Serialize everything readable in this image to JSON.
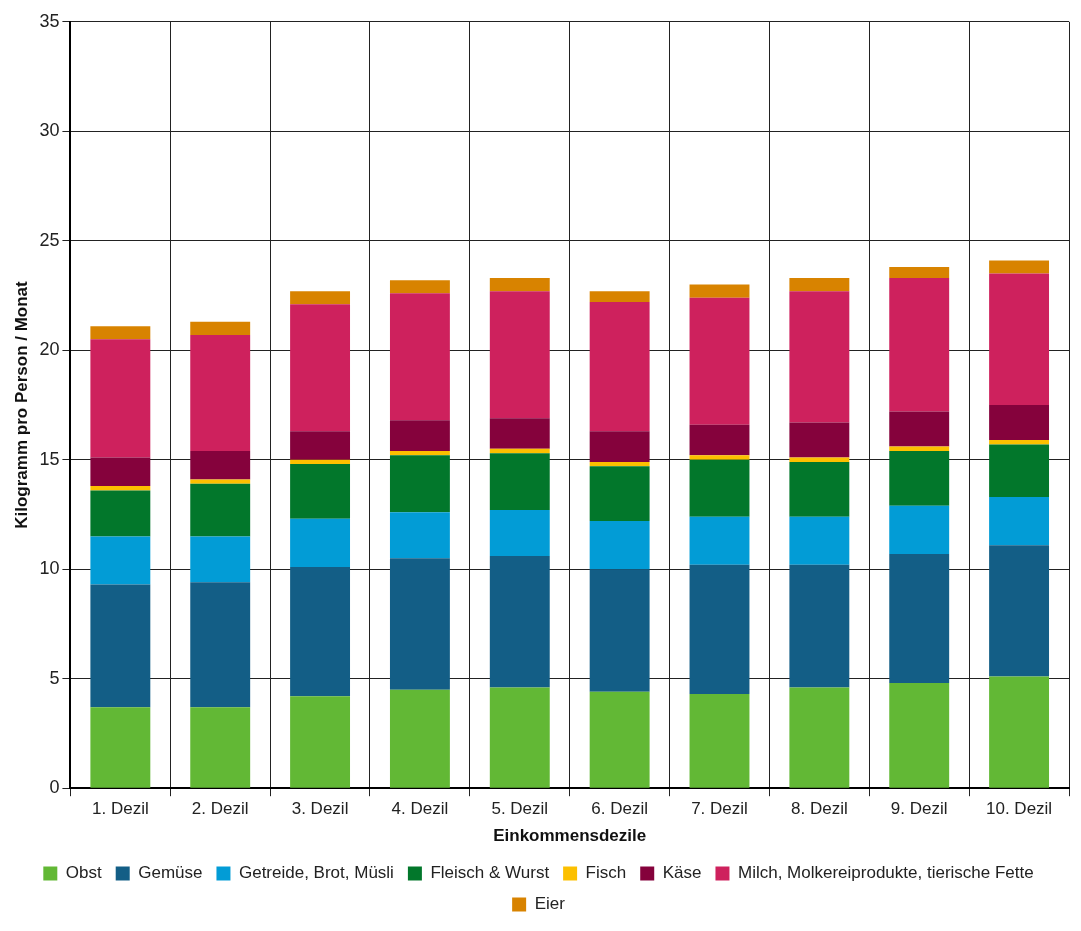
{
  "chart_data": {
    "type": "bar",
    "stacked": true,
    "xlabel": "Einkommensdezile",
    "ylabel": "Kilogramm pro Person / Monat",
    "categories": [
      "1. Dezil",
      "2. Dezil",
      "3. Dezil",
      "4. Dezil",
      "5. Dezil",
      "6. Dezil",
      "7. Dezil",
      "8. Dezil",
      "9. Dezil",
      "10. Dezil"
    ],
    "series": [
      {
        "name": "Obst",
        "color": "#62b835",
        "values": [
          3.7,
          3.7,
          4.2,
          4.5,
          4.6,
          4.4,
          4.3,
          4.6,
          4.8,
          5.1
        ]
      },
      {
        "name": "Gemüse",
        "color": "#135e86",
        "values": [
          5.6,
          5.7,
          5.9,
          6.0,
          6.0,
          5.6,
          5.9,
          5.6,
          5.9,
          6.0
        ]
      },
      {
        "name": "Getreide, Brot, Müsli",
        "color": "#029cd6",
        "values": [
          2.2,
          2.1,
          2.2,
          2.1,
          2.1,
          2.2,
          2.2,
          2.2,
          2.2,
          2.2
        ]
      },
      {
        "name": "Fleisch & Wurst",
        "color": "#02772b",
        "values": [
          2.1,
          2.4,
          2.5,
          2.6,
          2.6,
          2.5,
          2.6,
          2.5,
          2.5,
          2.4
        ]
      },
      {
        "name": "Fisch",
        "color": "#fcc000",
        "values": [
          0.2,
          0.2,
          0.2,
          0.2,
          0.2,
          0.2,
          0.2,
          0.2,
          0.2,
          0.2
        ]
      },
      {
        "name": "Käse",
        "color": "#85023c",
        "values": [
          1.3,
          1.3,
          1.3,
          1.4,
          1.4,
          1.4,
          1.4,
          1.6,
          1.6,
          1.6
        ]
      },
      {
        "name": "Milch, Molkereiprodukte, tierische Fette",
        "color": "#ce215d",
        "values": [
          5.4,
          5.3,
          5.8,
          5.8,
          5.8,
          5.9,
          5.8,
          6.0,
          6.1,
          6.0
        ]
      },
      {
        "name": "Eier",
        "color": "#d88300",
        "values": [
          0.6,
          0.6,
          0.6,
          0.6,
          0.6,
          0.5,
          0.6,
          0.6,
          0.5,
          0.6
        ]
      }
    ],
    "ylim": [
      0,
      35
    ],
    "yticks": [
      0,
      5,
      10,
      15,
      20,
      25,
      30,
      35
    ],
    "grid": true,
    "legend": "bottom"
  }
}
